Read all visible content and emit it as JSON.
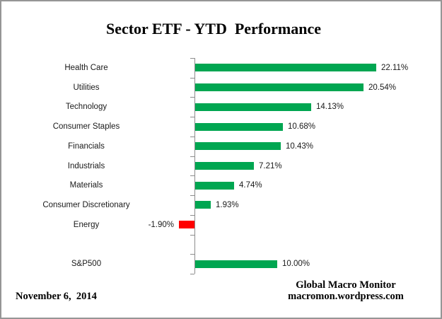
{
  "window": {
    "background": "#FFFFFF",
    "border_color": "#969696"
  },
  "title": "Sector ETF - YTD  Performance",
  "footer": {
    "date": "November 6,  2014",
    "credit_line1": "Global Macro Monitor",
    "credit_line2": "macromon.wordpress.com"
  },
  "colors": {
    "positive_bar": "#00A651",
    "negative_bar": "#FF0000",
    "axis": "#8C8C8C",
    "text": "#1A1A1A"
  },
  "chart_data": {
    "type": "bar",
    "orientation": "horizontal",
    "title": "Sector ETF - YTD  Performance",
    "value_unit": "percent",
    "baseline": 0,
    "grid": false,
    "legend": "none",
    "groups": [
      {
        "name": "sectors",
        "items": [
          {
            "category": "Health Care",
            "value": 22.11,
            "label": "22.11%"
          },
          {
            "category": "Utilities",
            "value": 20.54,
            "label": "20.54%"
          },
          {
            "category": "Technology",
            "value": 14.13,
            "label": "14.13%"
          },
          {
            "category": "Consumer Staples",
            "value": 10.68,
            "label": "10.68%"
          },
          {
            "category": "Financials",
            "value": 10.43,
            "label": "10.43%"
          },
          {
            "category": "Industrials",
            "value": 7.21,
            "label": "7.21%"
          },
          {
            "category": "Materials",
            "value": 4.74,
            "label": "4.74%"
          },
          {
            "category": "Consumer Discretionary",
            "value": 1.93,
            "label": "1.93%"
          },
          {
            "category": "Energy",
            "value": -1.9,
            "label": "-1.90%"
          }
        ]
      },
      {
        "name": "benchmark",
        "items": [
          {
            "category": "S&P500",
            "value": 10.0,
            "label": "10.00%"
          }
        ]
      }
    ]
  }
}
